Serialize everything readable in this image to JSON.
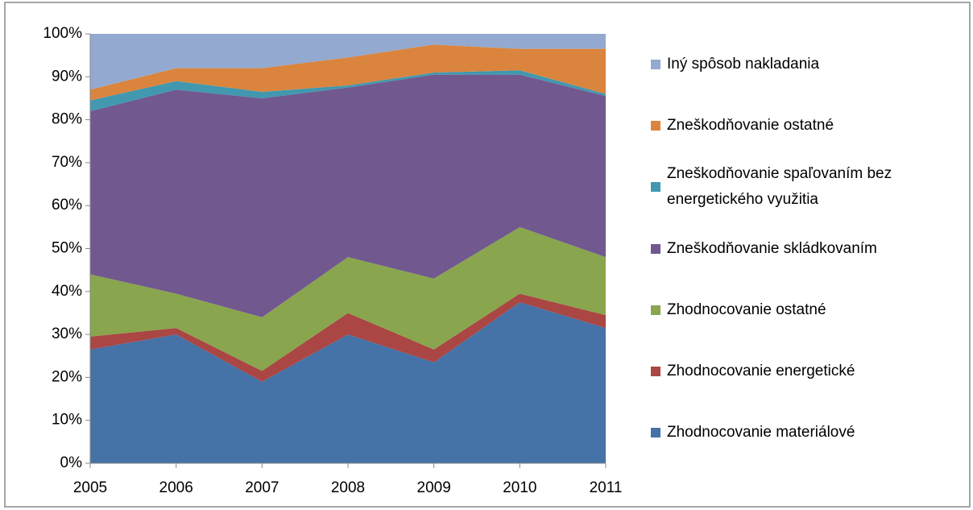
{
  "chart_data": {
    "type": "stacked_area",
    "categories": [
      "2005",
      "2006",
      "2007",
      "2008",
      "2009",
      "2010",
      "2011"
    ],
    "series": [
      {
        "name": "Zhodnocovanie materiálové",
        "color": "#4572a7",
        "values": [
          26.5,
          30,
          19,
          30,
          23.5,
          37.5,
          31.5
        ]
      },
      {
        "name": "Zhodnocovanie energetické",
        "color": "#aa4643",
        "values": [
          3,
          1.5,
          2.5,
          5,
          3,
          2,
          3
        ]
      },
      {
        "name": "Zhodnocovanie ostatné",
        "color": "#89a54e",
        "values": [
          14.5,
          8,
          12.5,
          13,
          16.5,
          15.5,
          13.5
        ]
      },
      {
        "name": "Zneškodňovanie skládkovaním",
        "color": "#71588f",
        "values": [
          38,
          47.5,
          51,
          39.5,
          47.5,
          35.5,
          37.5
        ]
      },
      {
        "name": "Zneškodňovanie spaľovaním bez energetického využitia",
        "color": "#4198af",
        "values": [
          2.5,
          2,
          1.5,
          0.5,
          0.5,
          1,
          0.5
        ]
      },
      {
        "name": "Zneškodňovanie ostatné",
        "color": "#db843d",
        "values": [
          2.5,
          3,
          5.5,
          6.5,
          6.5,
          5,
          10.5
        ]
      },
      {
        "name": "Iný spôsob nakladania",
        "color": "#93a9cf",
        "values": [
          13,
          8,
          8,
          5.5,
          2.5,
          3.5,
          3.5
        ]
      }
    ],
    "ylim": [
      0,
      100
    ],
    "yticks": [
      {
        "value": 0,
        "label": "0%"
      },
      {
        "value": 10,
        "label": "10%"
      },
      {
        "value": 20,
        "label": "20%"
      },
      {
        "value": 30,
        "label": "30%"
      },
      {
        "value": 40,
        "label": "40%"
      },
      {
        "value": 50,
        "label": "50%"
      },
      {
        "value": 60,
        "label": "60%"
      },
      {
        "value": 70,
        "label": "70%"
      },
      {
        "value": 80,
        "label": "80%"
      },
      {
        "value": 90,
        "label": "90%"
      },
      {
        "value": 100,
        "label": "100%"
      }
    ],
    "legend": "right"
  }
}
